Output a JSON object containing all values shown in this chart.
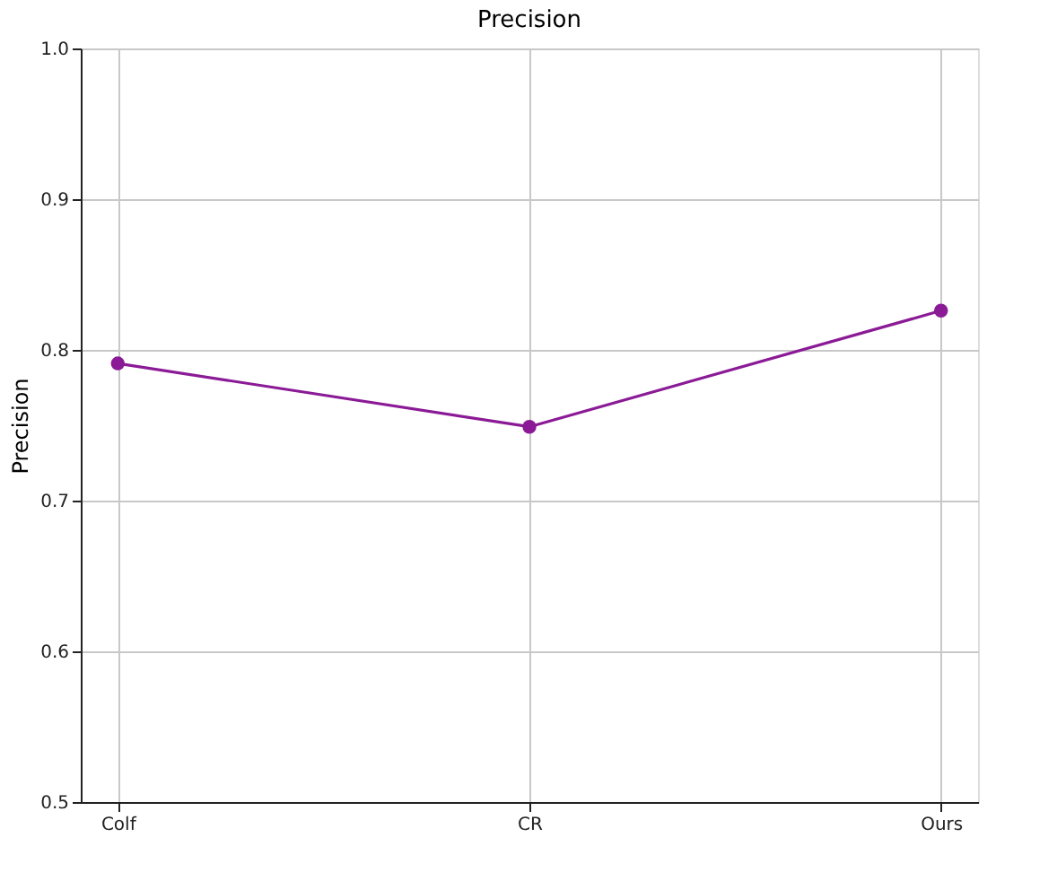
{
  "chart_data": {
    "type": "line",
    "title": "Precision",
    "ylabel": "Precision",
    "categories": [
      "Colf",
      "CR",
      "Ours"
    ],
    "series": [
      {
        "color": "#8b1a96",
        "values": [
          0.791,
          0.749,
          0.826
        ]
      }
    ],
    "ylim": [
      0.5,
      1.0
    ],
    "yticks": [
      0.5,
      0.6,
      0.7,
      0.8,
      0.9,
      {
        "value": 1.0,
        "label": "1.0"
      }
    ],
    "grid": true,
    "marker": "circle",
    "line_style": "solid"
  }
}
